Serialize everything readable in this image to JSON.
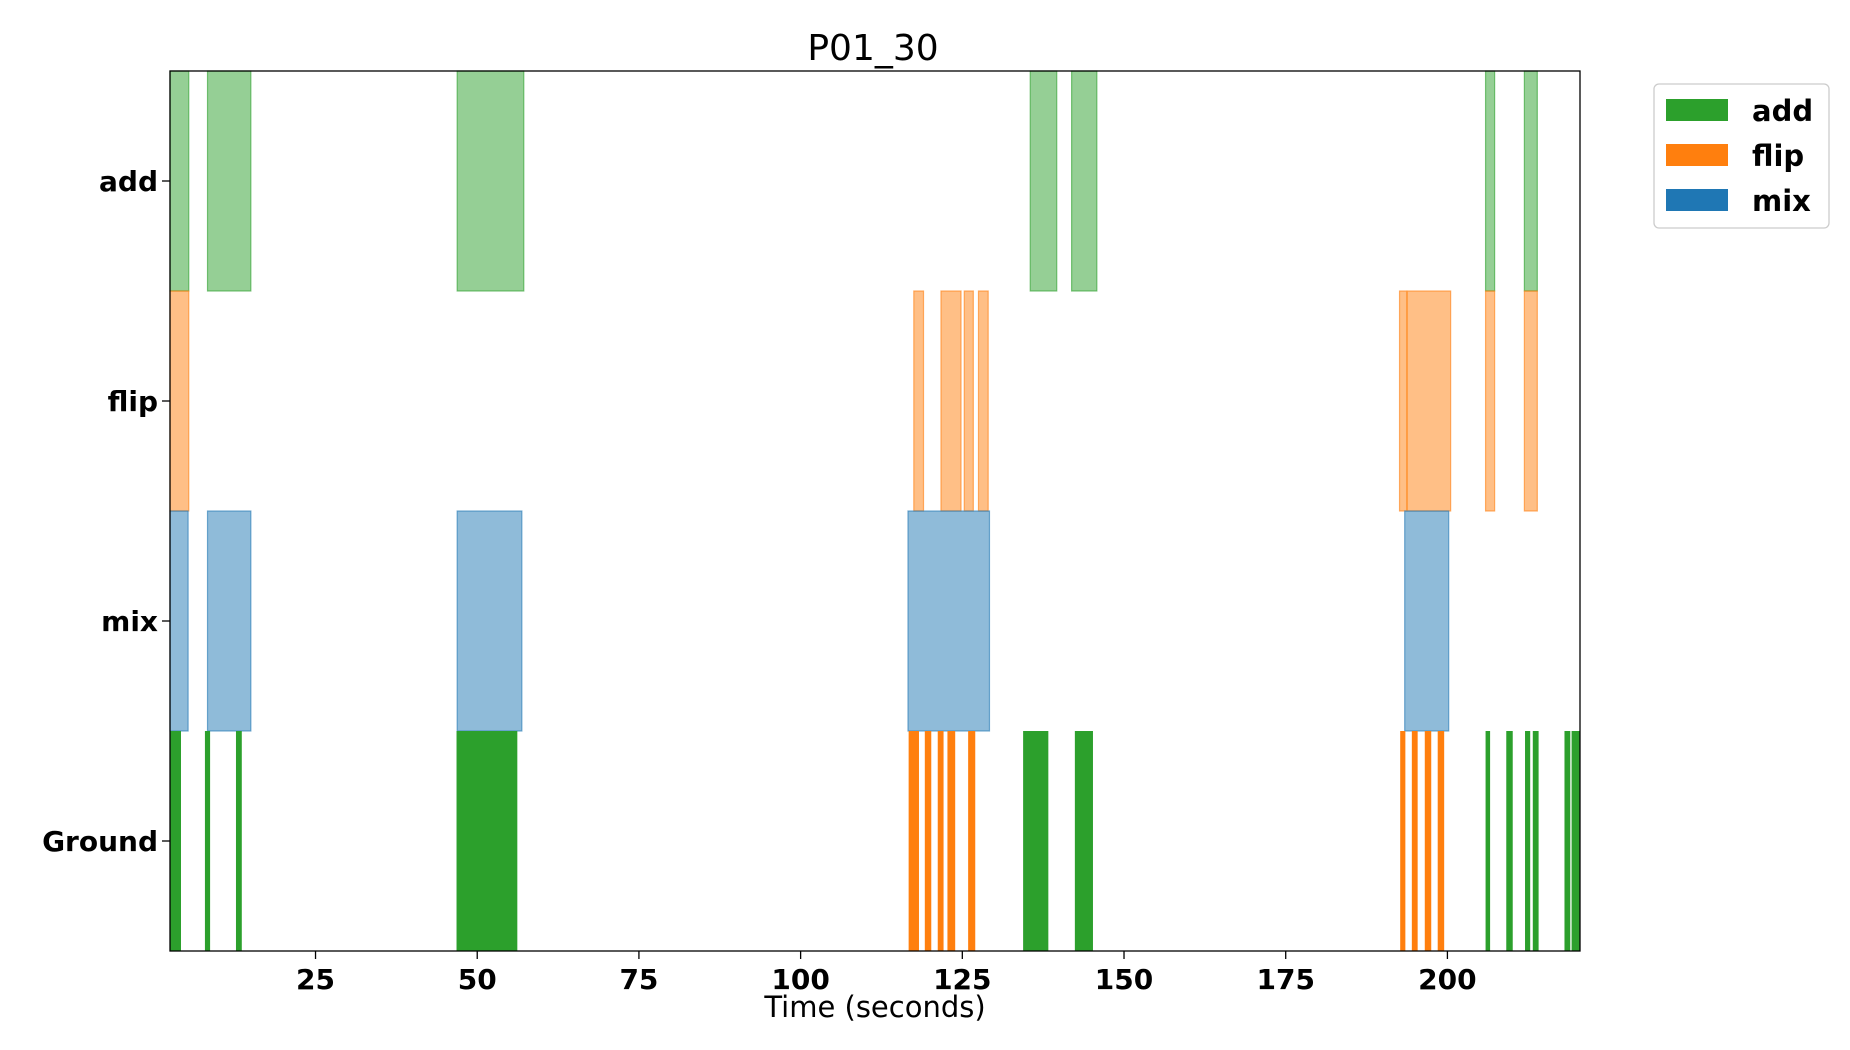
{
  "chart_data": {
    "type": "timeline",
    "title": "P01_30",
    "xlabel": "Time (seconds)",
    "ylabel": "",
    "xlim": [
      2.5,
      220.5
    ],
    "xticks": [
      25,
      50,
      75,
      100,
      125,
      150,
      175,
      200
    ],
    "rows": [
      "add",
      "flip",
      "mix",
      "Ground"
    ],
    "legend": {
      "placement": "outside-top-right",
      "entries": [
        {
          "label": "add",
          "color": "#2ca02c"
        },
        {
          "label": "flip",
          "color": "#ff7f0e"
        },
        {
          "label": "mix",
          "color": "#1f77b4"
        }
      ]
    },
    "colors": {
      "add": "#2ca02c",
      "flip": "#ff7f0e",
      "mix": "#1f77b4"
    },
    "segments": {
      "add": [
        [
          2.5,
          5.4
        ],
        [
          8.3,
          15.0
        ],
        [
          46.9,
          57.2
        ],
        [
          135.5,
          139.6
        ],
        [
          141.9,
          145.8
        ],
        [
          205.9,
          207.3
        ],
        [
          211.9,
          213.9
        ]
      ],
      "flip": [
        [
          2.5,
          5.4
        ],
        [
          117.5,
          119.0
        ],
        [
          121.7,
          124.8
        ],
        [
          125.3,
          126.7
        ],
        [
          127.5,
          129.0
        ],
        [
          192.6,
          193.7
        ],
        [
          193.8,
          200.5
        ],
        [
          205.9,
          207.3
        ],
        [
          211.9,
          213.9
        ]
      ],
      "mix": [
        [
          2.5,
          5.3
        ],
        [
          8.3,
          15.0
        ],
        [
          46.9,
          56.9
        ],
        [
          116.6,
          129.2
        ],
        [
          193.4,
          200.2
        ]
      ],
      "Ground": [
        {
          "label": "add",
          "t": [
            2.5,
            4.2
          ]
        },
        {
          "label": "add",
          "t": [
            7.9,
            8.7
          ]
        },
        {
          "label": "add",
          "t": [
            12.7,
            13.6
          ]
        },
        {
          "label": "add",
          "t": [
            46.8,
            56.2
          ]
        },
        {
          "label": "flip",
          "t": [
            116.7,
            118.3
          ]
        },
        {
          "label": "flip",
          "t": [
            119.2,
            120.2
          ]
        },
        {
          "label": "flip",
          "t": [
            121.2,
            122.1
          ]
        },
        {
          "label": "flip",
          "t": [
            122.7,
            123.9
          ]
        },
        {
          "label": "flip",
          "t": [
            125.9,
            127.0
          ]
        },
        {
          "label": "add",
          "t": [
            134.4,
            138.3
          ]
        },
        {
          "label": "add",
          "t": [
            142.4,
            145.2
          ]
        },
        {
          "label": "flip",
          "t": [
            192.7,
            193.5
          ]
        },
        {
          "label": "flip",
          "t": [
            194.5,
            195.4
          ]
        },
        {
          "label": "flip",
          "t": [
            196.5,
            197.5
          ]
        },
        {
          "label": "flip",
          "t": [
            198.5,
            199.5
          ]
        },
        {
          "label": "add",
          "t": [
            205.9,
            206.6
          ]
        },
        {
          "label": "add",
          "t": [
            209.1,
            210.1
          ]
        },
        {
          "label": "add",
          "t": [
            212.0,
            212.8
          ]
        },
        {
          "label": "add",
          "t": [
            213.2,
            214.1
          ]
        },
        {
          "label": "add",
          "t": [
            218.1,
            219.0
          ]
        },
        {
          "label": "add",
          "t": [
            219.2,
            220.5
          ]
        }
      ]
    }
  }
}
